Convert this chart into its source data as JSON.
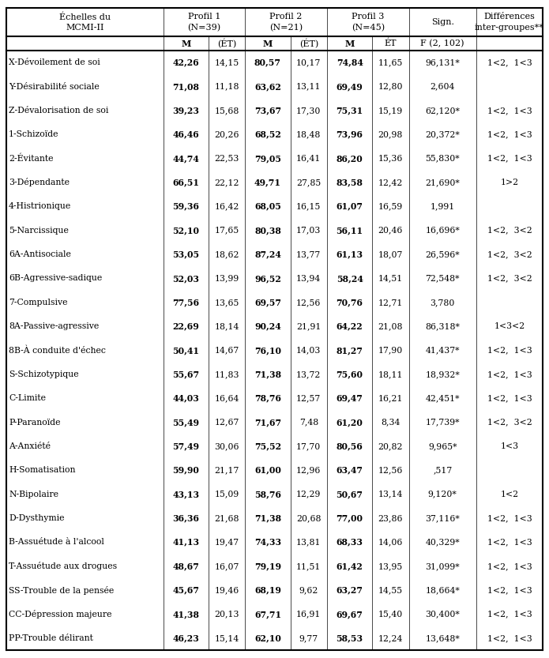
{
  "col_headers_row1": [
    "Échelles du",
    "Profil 1",
    "Profil 2",
    "Profil 3",
    "Sign.",
    "Différences"
  ],
  "col_headers_row2": [
    "MCMI-II",
    "(N=39)",
    "(N=21)",
    "(N=45)",
    "",
    "inter-groupes**"
  ],
  "sub_headers": [
    "",
    "M",
    "(ÉT)",
    "M",
    "(ÉT)",
    "M",
    "ÉT",
    "F (2, 102)",
    ""
  ],
  "rows": [
    [
      "X-Dévoilement de soi",
      "42,26",
      "14,15",
      "80,57",
      "10,17",
      "74,84",
      "11,65",
      "96,131*",
      "1<2,  1<3"
    ],
    [
      "Y-Désirabilité sociale",
      "71,08",
      "11,18",
      "63,62",
      "13,11",
      "69,49",
      "12,80",
      "2,604",
      ""
    ],
    [
      "Z-Dévalorisation de soi",
      "39,23",
      "15,68",
      "73,67",
      "17,30",
      "75,31",
      "15,19",
      "62,120*",
      "1<2,  1<3"
    ],
    [
      "1-Schizoïde",
      "46,46",
      "20,26",
      "68,52",
      "18,48",
      "73,96",
      "20,98",
      "20,372*",
      "1<2,  1<3"
    ],
    [
      "2-Évitante",
      "44,74",
      "22,53",
      "79,05",
      "16,41",
      "86,20",
      "15,36",
      "55,830*",
      "1<2,  1<3"
    ],
    [
      "3-Dépendante",
      "66,51",
      "22,12",
      "49,71",
      "27,85",
      "83,58",
      "12,42",
      "21,690*",
      "1>2"
    ],
    [
      "4-Histrionique",
      "59,36",
      "16,42",
      "68,05",
      "16,15",
      "61,07",
      "16,59",
      "1,991",
      ""
    ],
    [
      "5-Narcissique",
      "52,10",
      "17,65",
      "80,38",
      "17,03",
      "56,11",
      "20,46",
      "16,696*",
      "1<2,  3<2"
    ],
    [
      "6A-Antisociale",
      "53,05",
      "18,62",
      "87,24",
      "13,77",
      "61,13",
      "18,07",
      "26,596*",
      "1<2,  3<2"
    ],
    [
      "6B-Agressive-sadique",
      "52,03",
      "13,99",
      "96,52",
      "13,94",
      "58,24",
      "14,51",
      "72,548*",
      "1<2,  3<2"
    ],
    [
      "7-Compulsive",
      "77,56",
      "13,65",
      "69,57",
      "12,56",
      "70,76",
      "12,71",
      "3,780",
      ""
    ],
    [
      "8A-Passive-agressive",
      "22,69",
      "18,14",
      "90,24",
      "21,91",
      "64,22",
      "21,08",
      "86,318*",
      "1<3<2"
    ],
    [
      "8B-À conduite d'échec",
      "50,41",
      "14,67",
      "76,10",
      "14,03",
      "81,27",
      "17,90",
      "41,437*",
      "1<2,  1<3"
    ],
    [
      "S-Schizotypique",
      "55,67",
      "11,83",
      "71,38",
      "13,72",
      "75,60",
      "18,11",
      "18,932*",
      "1<2,  1<3"
    ],
    [
      "C-Limite",
      "44,03",
      "16,64",
      "78,76",
      "12,57",
      "69,47",
      "16,21",
      "42,451*",
      "1<2,  1<3"
    ],
    [
      "P-Paranoïde",
      "55,49",
      "12,67",
      "71,67",
      "7,48",
      "61,20",
      "8,34",
      "17,739*",
      "1<2,  3<2"
    ],
    [
      "A-Anxiété",
      "57,49",
      "30,06",
      "75,52",
      "17,70",
      "80,56",
      "20,82",
      "9,965*",
      "1<3"
    ],
    [
      "H-Somatisation",
      "59,90",
      "21,17",
      "61,00",
      "12,96",
      "63,47",
      "12,56",
      ",517",
      ""
    ],
    [
      "N-Bipolaire",
      "43,13",
      "15,09",
      "58,76",
      "12,29",
      "50,67",
      "13,14",
      "9,120*",
      "1<2"
    ],
    [
      "D-Dysthymie",
      "36,36",
      "21,68",
      "71,38",
      "20,68",
      "77,00",
      "23,86",
      "37,116*",
      "1<2,  1<3"
    ],
    [
      "B-Assuétude à l'alcool",
      "41,13",
      "19,47",
      "74,33",
      "13,81",
      "68,33",
      "14,06",
      "40,329*",
      "1<2,  1<3"
    ],
    [
      "T-Assuétude aux drogues",
      "48,67",
      "16,07",
      "79,19",
      "11,51",
      "61,42",
      "13,95",
      "31,099*",
      "1<2,  1<3"
    ],
    [
      "SS-Trouble de la pensée",
      "45,67",
      "19,46",
      "68,19",
      "9,62",
      "63,27",
      "14,55",
      "18,664*",
      "1<2,  1<3"
    ],
    [
      "CC-Dépression majeure",
      "41,38",
      "20,13",
      "67,71",
      "16,91",
      "69,67",
      "15,40",
      "30,400*",
      "1<2,  1<3"
    ],
    [
      "PP-Trouble délirant",
      "46,23",
      "15,14",
      "62,10",
      "9,77",
      "58,53",
      "12,24",
      "13,648*",
      "1<2,  1<3"
    ]
  ],
  "bg_color": "#ffffff",
  "line_color": "#000000",
  "text_color": "#000000",
  "font_family": "serif",
  "header_fontsize": 8.0,
  "body_fontsize": 7.8,
  "sub_header_fontsize": 8.0
}
